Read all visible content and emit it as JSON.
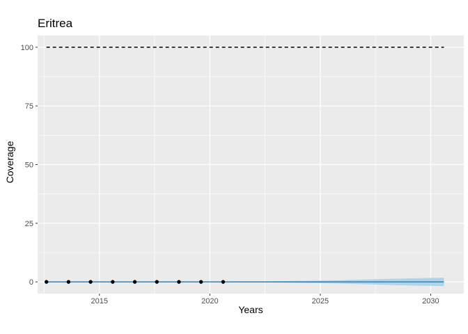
{
  "chart_data": {
    "type": "line",
    "title": "Eritrea",
    "xlabel": "Years",
    "ylabel": "Coverage",
    "xlim": [
      2012.2,
      2031.5
    ],
    "ylim": [
      -5,
      105
    ],
    "x_ticks": [
      2015,
      2020,
      2025,
      2030
    ],
    "y_ticks": [
      0,
      25,
      50,
      75,
      100
    ],
    "grid": true,
    "legend": "none",
    "target": {
      "value": 100,
      "x_start": 2012.6,
      "x_end": 2030.6,
      "style": "dashed"
    },
    "observed": {
      "x": [
        2012.6,
        2013.6,
        2014.6,
        2015.6,
        2016.6,
        2017.6,
        2018.6,
        2019.6,
        2020.6
      ],
      "y": [
        0,
        0,
        0,
        0,
        0,
        0,
        0,
        0,
        0
      ]
    },
    "fit": {
      "x": [
        2012.6,
        2014,
        2016,
        2018,
        2020,
        2021,
        2022,
        2023,
        2024,
        2025,
        2026,
        2027,
        2028,
        2029,
        2030,
        2030.6
      ],
      "y": [
        0,
        0,
        0,
        0,
        0,
        0,
        0,
        0,
        0,
        0,
        0,
        0,
        0,
        0,
        0,
        0
      ],
      "lower": [
        0,
        0,
        0,
        0,
        0,
        -0.1,
        -0.15,
        -0.25,
        -0.4,
        -0.55,
        -0.75,
        -1.0,
        -1.25,
        -1.5,
        -1.7,
        -1.8
      ],
      "upper": [
        0,
        0,
        0,
        0,
        0,
        0.1,
        0.15,
        0.25,
        0.4,
        0.55,
        0.75,
        1.0,
        1.25,
        1.5,
        1.7,
        1.8
      ]
    },
    "colors": {
      "panel": "#ebebeb",
      "grid": "#ffffff",
      "fit_line": "#2a85c2",
      "ribbon": "#a6cfe6",
      "points": "#000000",
      "target_line": "#000000"
    }
  }
}
